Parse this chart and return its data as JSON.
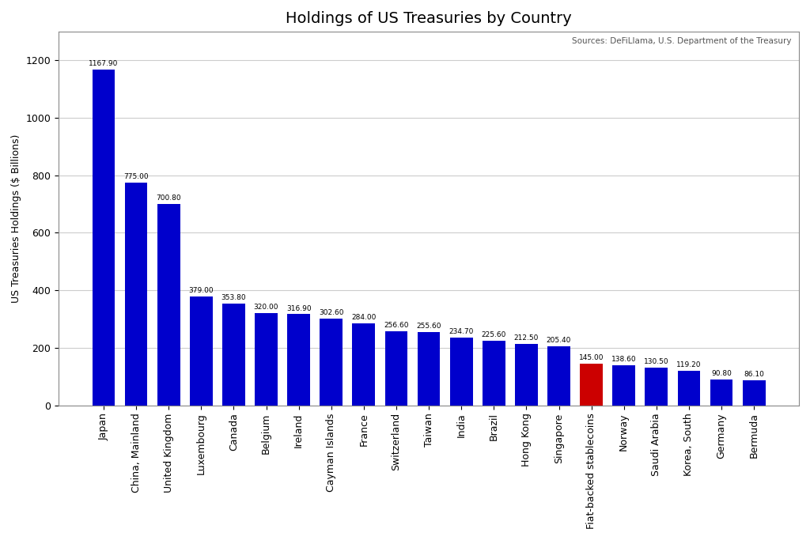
{
  "title": "Holdings of US Treasuries by Country",
  "ylabel": "US Treasuries Holdings ($ Billions)",
  "source_text": "Sources: DeFiLlama, U.S. Department of the Treasury",
  "categories": [
    "Japan",
    "China, Mainland",
    "United Kingdom",
    "Luxembourg",
    "Canada",
    "Belgium",
    "Ireland",
    "Cayman Islands",
    "France",
    "Switzerland",
    "Taiwan",
    "India",
    "Brazil",
    "Hong Kong",
    "Singapore",
    "Fiat-backed stablecoins",
    "Norway",
    "Saudi Arabia",
    "Korea, South",
    "Germany",
    "Bermuda"
  ],
  "values": [
    1167.9,
    775.0,
    700.8,
    379.0,
    353.8,
    320.0,
    316.9,
    302.6,
    284.0,
    256.6,
    255.6,
    234.7,
    225.6,
    212.5,
    205.4,
    145.0,
    138.6,
    130.5,
    119.2,
    90.8,
    86.1
  ],
  "bar_colors": [
    "#0000cc",
    "#0000cc",
    "#0000cc",
    "#0000cc",
    "#0000cc",
    "#0000cc",
    "#0000cc",
    "#0000cc",
    "#0000cc",
    "#0000cc",
    "#0000cc",
    "#0000cc",
    "#0000cc",
    "#0000cc",
    "#0000cc",
    "#cc0000",
    "#0000cc",
    "#0000cc",
    "#0000cc",
    "#0000cc",
    "#0000cc"
  ],
  "ylim": [
    0,
    1300
  ],
  "yticks": [
    0,
    200,
    400,
    600,
    800,
    1000,
    1200
  ],
  "background_color": "#ffffff",
  "grid_color": "#cccccc",
  "title_fontsize": 14,
  "label_fontsize": 9,
  "tick_fontsize": 9,
  "value_fontsize": 6.5,
  "source_fontsize": 7.5
}
